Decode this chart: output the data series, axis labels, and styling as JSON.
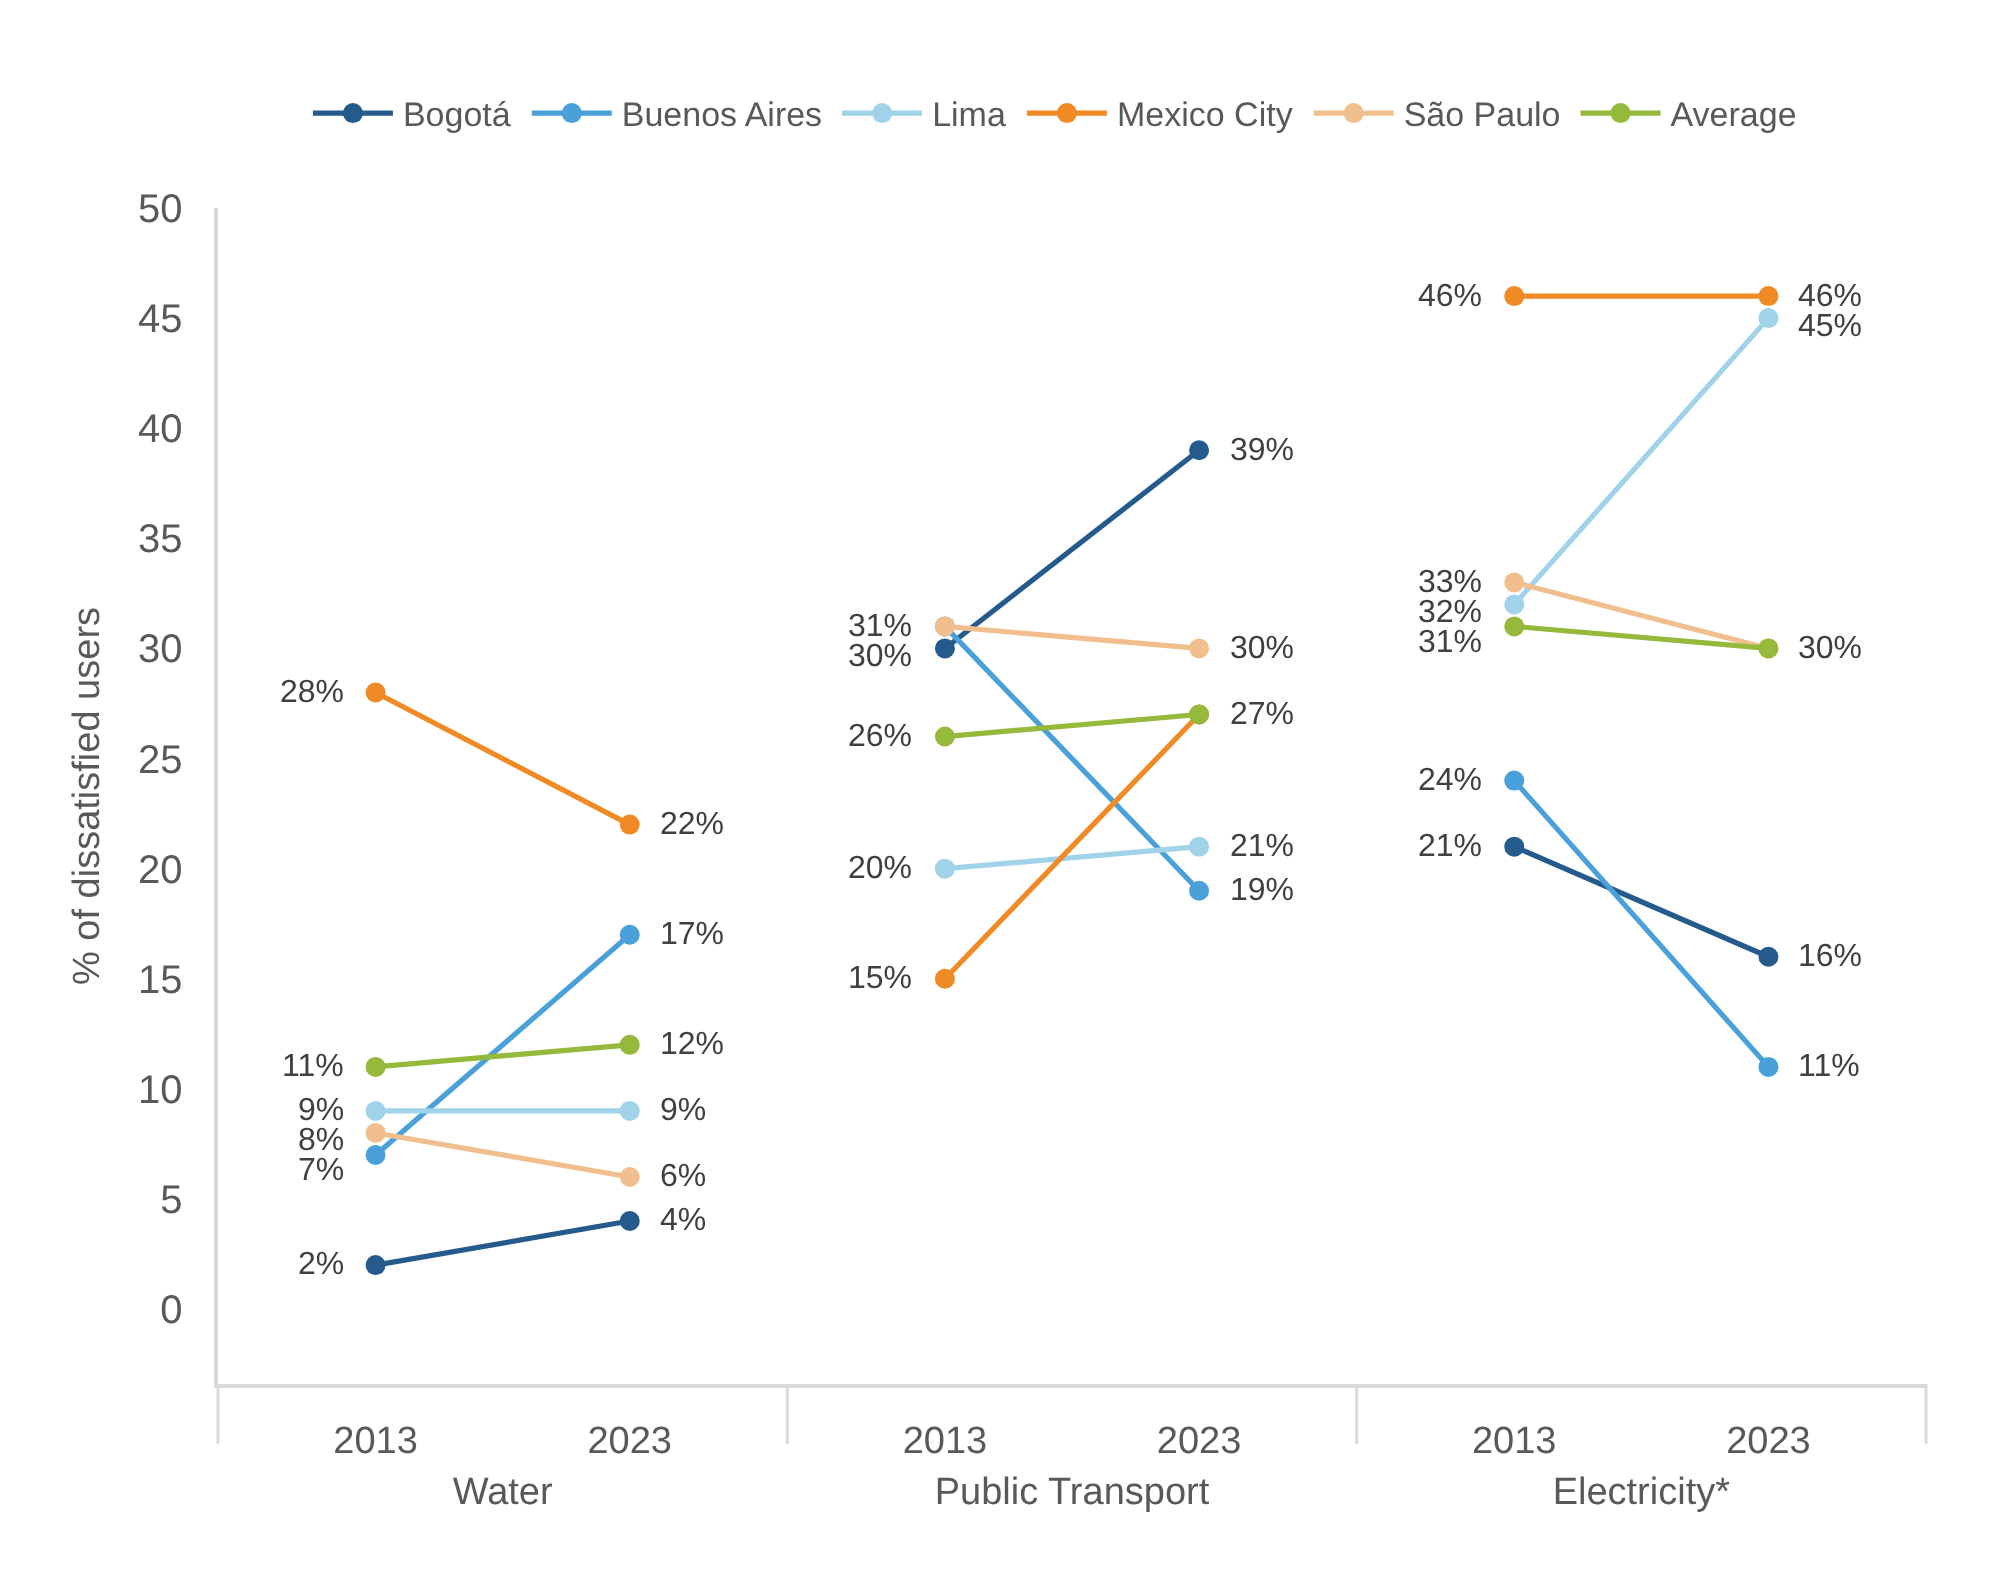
{
  "chart_data": [
    {
      "type": "line",
      "categories": [
        "2013",
        "2023"
      ],
      "xlabel": "Water",
      "ylabel": "% of dissatisfied users",
      "ylim": [
        -3.4,
        50
      ],
      "yticks": [
        0,
        5,
        10,
        15,
        20,
        25,
        30,
        35,
        40,
        45,
        50
      ],
      "legend": "top",
      "marker": "circle",
      "series": [
        {
          "name": "Bogotá",
          "color": "#245a8c",
          "values": [
            2,
            4
          ],
          "value_labels": [
            "2%",
            "4%"
          ]
        },
        {
          "name": "Buenos Aires",
          "color": "#4aa0d8",
          "values": [
            7,
            17
          ],
          "value_labels": [
            "7%",
            "17%"
          ]
        },
        {
          "name": "Lima",
          "color": "#a0d3ea",
          "values": [
            9,
            9
          ],
          "value_labels": [
            "9%",
            "9%"
          ]
        },
        {
          "name": "Mexico City",
          "color": "#ef8a25",
          "values": [
            28,
            22
          ],
          "value_labels": [
            "28%",
            "22%"
          ]
        },
        {
          "name": "São Paulo",
          "color": "#f1bf8e",
          "values": [
            8,
            6
          ],
          "value_labels": [
            "8%",
            "6%"
          ]
        },
        {
          "name": "Average",
          "color": "#94b93b",
          "values": [
            11,
            12
          ],
          "value_labels": [
            "11%",
            "12%"
          ]
        }
      ]
    },
    {
      "type": "line",
      "categories": [
        "2013",
        "2023"
      ],
      "xlabel": "Public Transport",
      "ylim": [
        -3.4,
        50
      ],
      "yticks": [
        0,
        5,
        10,
        15,
        20,
        25,
        30,
        35,
        40,
        45,
        50
      ],
      "tick_labels": "x",
      "marker": "circle",
      "series": [
        {
          "color": "#245a8c",
          "values": [
            30,
            39
          ],
          "value_labels": [
            "30%",
            "39%"
          ]
        },
        {
          "color": "#4aa0d8",
          "values": [
            31,
            19
          ],
          "value_labels": [
            null,
            "19%"
          ]
        },
        {
          "color": "#a0d3ea",
          "values": [
            20,
            21
          ],
          "value_labels": [
            "20%",
            "21%"
          ]
        },
        {
          "color": "#ef8a25",
          "values": [
            15,
            27
          ],
          "value_labels": [
            "15%",
            null
          ]
        },
        {
          "color": "#f1bf8e",
          "values": [
            31,
            30
          ],
          "value_labels": [
            "31%",
            "30%"
          ]
        },
        {
          "color": "#94b93b",
          "values": [
            26,
            27
          ],
          "value_labels": [
            "26%",
            "27%"
          ]
        }
      ]
    },
    {
      "type": "line",
      "categories": [
        "2013",
        "2023"
      ],
      "xlabel": "Electricity*",
      "ylim": [
        -3.4,
        50
      ],
      "yticks": [
        0,
        5,
        10,
        15,
        20,
        25,
        30,
        35,
        40,
        45,
        50
      ],
      "tick_labels": "x",
      "marker": "circle",
      "series": [
        {
          "color": "#245a8c",
          "values": [
            21,
            16
          ],
          "value_labels": [
            "21%",
            "16%"
          ]
        },
        {
          "color": "#4aa0d8",
          "values": [
            24,
            11
          ],
          "value_labels": [
            "24%",
            "11%"
          ]
        },
        {
          "color": "#a0d3ea",
          "values": [
            32,
            45
          ],
          "value_labels": [
            "32%",
            "45%"
          ]
        },
        {
          "color": "#ef8a25",
          "values": [
            46,
            46
          ],
          "value_labels": [
            "46%",
            "46%"
          ]
        },
        {
          "color": "#f1bf8e",
          "values": [
            33,
            30
          ],
          "value_labels": [
            "33%",
            null
          ]
        },
        {
          "color": "#94b93b",
          "values": [
            31,
            30
          ],
          "value_labels": [
            "31%",
            "30%"
          ]
        }
      ]
    }
  ]
}
